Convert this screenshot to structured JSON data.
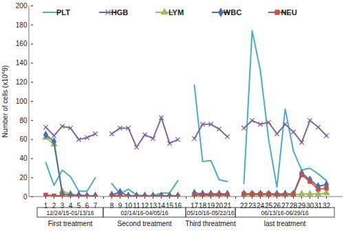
{
  "chart_data": {
    "type": "line",
    "y_label": "Number of cells (x10^9)",
    "categories": [
      "1",
      "2",
      "3",
      "4",
      "5",
      "6",
      "7",
      null,
      "8",
      "9",
      "10",
      "11",
      "12",
      "13",
      "14",
      "15",
      "16",
      null,
      "17",
      "18",
      "19",
      "20",
      "21",
      null,
      "22",
      "23",
      "24",
      "25",
      "26",
      "27",
      "28",
      "29",
      "30",
      "31",
      "32"
    ],
    "series": [
      {
        "name": "PLT",
        "color": "#4bacc6",
        "marker": "none",
        "values": [
          36,
          12,
          28,
          21,
          6,
          6,
          20,
          null,
          14,
          3,
          8,
          2,
          1,
          1,
          4,
          4,
          17,
          null,
          117,
          37,
          38,
          18,
          16,
          null,
          14,
          174,
          132,
          60,
          10,
          92,
          48,
          28,
          30,
          24,
          17
        ]
      },
      {
        "name": "HGB",
        "color": "#8064a2",
        "marker": "x",
        "values": [
          73,
          64,
          74,
          72,
          60,
          62,
          66,
          null,
          66,
          72,
          72,
          52,
          65,
          61,
          83,
          56,
          60,
          null,
          61,
          76,
          76,
          71,
          63,
          null,
          72,
          80,
          76,
          78,
          66,
          76,
          68,
          57,
          80,
          73,
          64
        ]
      },
      {
        "name": "LYM",
        "color": "#9bbb59",
        "marker": "triangle",
        "values": [
          62,
          55,
          6,
          3,
          1,
          1,
          1,
          null,
          2,
          1,
          1,
          1,
          1,
          1,
          1,
          1,
          1,
          null,
          2,
          2,
          2,
          2,
          2,
          null,
          2,
          2,
          2,
          2,
          2,
          2,
          2,
          3,
          3,
          3,
          4
        ]
      },
      {
        "name": "WBC",
        "color": "#4f6fa8",
        "marker": "diamond",
        "values": [
          65,
          58,
          3,
          2,
          2,
          1,
          1,
          null,
          2,
          5,
          1,
          1,
          1,
          1,
          1,
          1,
          1,
          null,
          4,
          3,
          3,
          3,
          3,
          null,
          3,
          3,
          3,
          3,
          3,
          3,
          3,
          25,
          18,
          11,
          13
        ]
      },
      {
        "name": "NEU",
        "color": "#c0504d",
        "marker": "square",
        "values": [
          2,
          1,
          1,
          0,
          0,
          0,
          0,
          null,
          1,
          1,
          0,
          0,
          0,
          0,
          0,
          0,
          0,
          null,
          2,
          2,
          2,
          2,
          2,
          null,
          3,
          3,
          3,
          3,
          2,
          2,
          3,
          23,
          16,
          8,
          9
        ]
      }
    ],
    "ylim": [
      0,
      200
    ],
    "yticks": [
      0,
      20,
      40,
      60,
      80,
      100,
      120,
      140,
      160,
      180,
      200
    ],
    "grid": false,
    "legend": "top",
    "groups": [
      {
        "dates": "12/24/15-01/13/16",
        "label": "First treatment",
        "start": "1",
        "end": "7"
      },
      {
        "dates": "02/14/16-04/05/16",
        "label": "Second treatment",
        "start": "8",
        "end": "16"
      },
      {
        "dates": "05/10/16-05/22/16",
        "label": "Third threatment",
        "start": "17",
        "end": "21"
      },
      {
        "dates": "06/13/16-06/29/16",
        "label": "last treatment",
        "start": "22",
        "end": "32"
      }
    ]
  }
}
